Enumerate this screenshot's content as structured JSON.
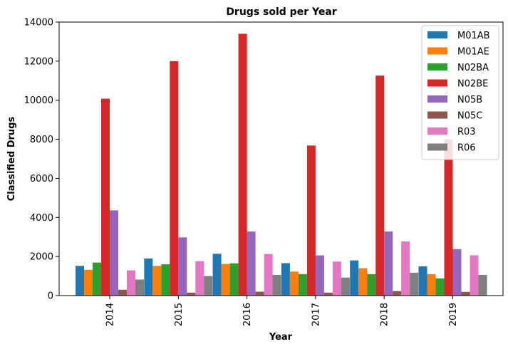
{
  "chart_data": {
    "type": "bar",
    "title": "Drugs sold per Year",
    "xlabel": "Year",
    "ylabel": "Classified Drugs",
    "ylim": [
      0,
      14000
    ],
    "yticks": [
      0,
      2000,
      4000,
      6000,
      8000,
      10000,
      12000,
      14000
    ],
    "grid": false,
    "legend_position": "top-right",
    "categories": [
      "2014",
      "2015",
      "2016",
      "2017",
      "2018",
      "2019"
    ],
    "series": [
      {
        "name": "M01AB",
        "color": "#1f77b4",
        "values": [
          1520,
          1900,
          2140,
          1660,
          1800,
          1500
        ]
      },
      {
        "name": "M01AE",
        "color": "#ff7f0e",
        "values": [
          1320,
          1520,
          1620,
          1230,
          1400,
          1100
        ]
      },
      {
        "name": "N02BA",
        "color": "#2ca02c",
        "values": [
          1690,
          1600,
          1650,
          1100,
          1100,
          880
        ]
      },
      {
        "name": "N02BE",
        "color": "#d62728",
        "values": [
          10080,
          12000,
          13400,
          7680,
          11260,
          8000
        ]
      },
      {
        "name": "N05B",
        "color": "#9467bd",
        "values": [
          4360,
          2980,
          3280,
          2060,
          3280,
          2380
        ]
      },
      {
        "name": "N05C",
        "color": "#8c564b",
        "values": [
          300,
          150,
          200,
          150,
          230,
          190
        ]
      },
      {
        "name": "R03",
        "color": "#e377c2",
        "values": [
          1290,
          1760,
          2130,
          1740,
          2770,
          2060
        ]
      },
      {
        "name": "R06",
        "color": "#7f7f7f",
        "values": [
          820,
          1000,
          1060,
          920,
          1170,
          1060
        ]
      }
    ]
  }
}
